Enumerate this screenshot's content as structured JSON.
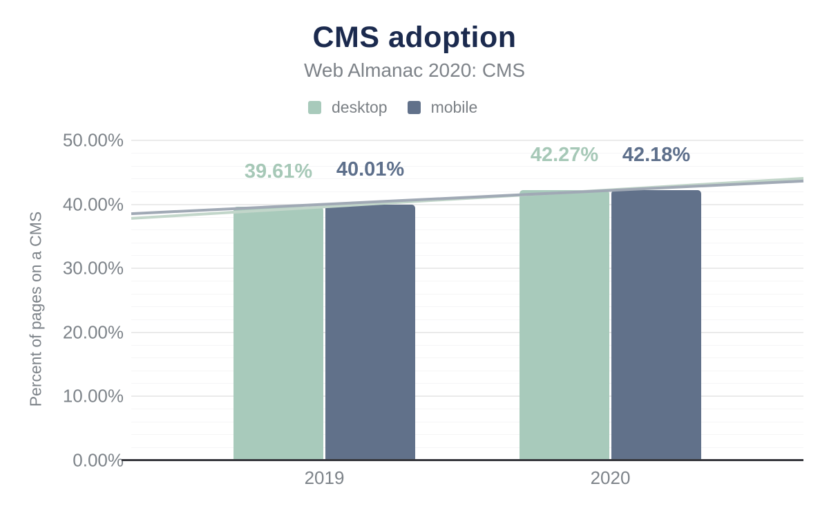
{
  "header": {
    "title": "CMS adoption",
    "subtitle": "Web Almanac 2020: CMS"
  },
  "legend": [
    {
      "label": "desktop",
      "color": "#a8cabb"
    },
    {
      "label": "mobile",
      "color": "#61718a"
    }
  ],
  "chart_data": {
    "type": "bar",
    "title": "CMS adoption",
    "subtitle": "Web Almanac 2020: CMS",
    "categories": [
      "2019",
      "2020"
    ],
    "series": [
      {
        "name": "desktop",
        "values": [
          39.61,
          42.27
        ],
        "labels": [
          "39.61%",
          "42.27%"
        ],
        "color": "#a8cabb",
        "label_color": "#a6c8b7",
        "trend_color": "#c2d6ca"
      },
      {
        "name": "mobile",
        "values": [
          40.01,
          42.18
        ],
        "labels": [
          "40.01%",
          "42.18%"
        ],
        "color": "#61718a",
        "label_color": "#5d6f8b",
        "trend_color": "#a0a9b5"
      }
    ],
    "xlabel": "",
    "ylabel": "Percent of pages on a CMS",
    "ylim": [
      0,
      50
    ],
    "yticks": {
      "values": [
        0,
        10,
        20,
        30,
        40,
        50
      ],
      "labels": [
        "0.00%",
        "10.00%",
        "20.00%",
        "30.00%",
        "40.00%",
        "50.00%"
      ]
    },
    "minor_grid_step": 2,
    "grid": true,
    "legend_position": "top",
    "trendlines": true
  },
  "colors": {
    "title": "#1b2a4e",
    "subtitle": "#7d8288",
    "axis_text": "#7d8389",
    "legend_text": "#7b8085",
    "axis_line": "#37383d",
    "grid_major": "#eaeaea",
    "grid_minor": "#f5f5f6",
    "background": "#ffffff"
  }
}
